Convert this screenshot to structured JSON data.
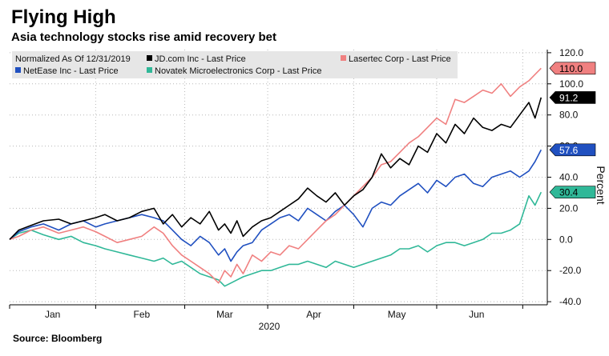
{
  "header": {
    "title": "Flying High",
    "subtitle": "Asia technology stocks rise amid recovery bet"
  },
  "footer": {
    "source": "Source: Bloomberg"
  },
  "chart_data": {
    "type": "line",
    "legend_note": "Normalized As Of 12/31/2019",
    "legend_placement": "top-left",
    "ylabel": "Percent",
    "xlabel": "2020",
    "ylim": [
      -42,
      122
    ],
    "yticks": [
      120,
      100,
      80,
      60,
      40,
      20,
      0,
      -20,
      -40
    ],
    "ytick_labels": [
      "120.0",
      "100.0",
      "80.0",
      "60.0",
      "40.0",
      "20.0",
      "0.0",
      "-20.0",
      "-40.0"
    ],
    "x_range": [
      0,
      175
    ],
    "x_months": [
      {
        "label": "Jan",
        "x": 14
      },
      {
        "label": "Feb",
        "x": 43
      },
      {
        "label": "Mar",
        "x": 70
      },
      {
        "label": "Apr",
        "x": 99
      },
      {
        "label": "May",
        "x": 126
      },
      {
        "label": "Jun",
        "x": 152
      }
    ],
    "x_month_boundaries": [
      0,
      28,
      57,
      84,
      112,
      139,
      167
    ],
    "grid": true,
    "series": [
      {
        "name": "JD.com Inc - Last Price",
        "color": "#000000",
        "last_value": 91.2,
        "last_label": "91.2",
        "tag_bg": "#000000",
        "tag_fg": "#ffffff",
        "x": [
          0,
          3,
          7,
          11,
          16,
          20,
          24,
          28,
          31,
          35,
          39,
          43,
          47,
          50,
          53,
          56,
          59,
          62,
          65,
          68,
          70,
          72,
          74,
          76,
          79,
          82,
          85,
          88,
          91,
          94,
          97,
          100,
          103,
          106,
          109,
          112,
          115,
          118,
          121,
          124,
          127,
          130,
          133,
          136,
          139,
          142,
          145,
          148,
          151,
          154,
          157,
          160,
          163,
          166,
          169,
          171,
          173
        ],
        "y": [
          0,
          6,
          9,
          12,
          13,
          10,
          12,
          14,
          16,
          12,
          14,
          18,
          20,
          10,
          16,
          8,
          14,
          10,
          18,
          6,
          10,
          4,
          12,
          2,
          8,
          12,
          14,
          18,
          22,
          26,
          33,
          28,
          24,
          30,
          22,
          28,
          32,
          40,
          55,
          46,
          52,
          48,
          60,
          56,
          68,
          62,
          74,
          68,
          78,
          72,
          70,
          74,
          72,
          80,
          88,
          78,
          91.2
        ]
      },
      {
        "name": "Lasertec Corp - Last Price",
        "color": "#f08080",
        "last_value": 110.0,
        "last_label": "110.0",
        "tag_bg": "#f08080",
        "tag_fg": "#000000",
        "x": [
          0,
          3,
          7,
          11,
          16,
          20,
          24,
          28,
          31,
          35,
          39,
          43,
          47,
          50,
          53,
          56,
          59,
          62,
          65,
          68,
          70,
          72,
          74,
          76,
          79,
          82,
          85,
          88,
          91,
          94,
          97,
          100,
          103,
          106,
          109,
          112,
          115,
          118,
          121,
          124,
          127,
          130,
          133,
          136,
          139,
          142,
          145,
          148,
          151,
          154,
          157,
          160,
          163,
          166,
          169,
          171,
          173
        ],
        "y": [
          0,
          2,
          6,
          8,
          4,
          6,
          8,
          5,
          2,
          -2,
          0,
          2,
          8,
          4,
          -4,
          -10,
          -14,
          -18,
          -22,
          -28,
          -20,
          -24,
          -16,
          -22,
          -10,
          -14,
          -8,
          -10,
          -4,
          -6,
          0,
          6,
          12,
          16,
          22,
          28,
          34,
          40,
          48,
          50,
          56,
          62,
          66,
          72,
          78,
          74,
          90,
          88,
          92,
          96,
          94,
          100,
          92,
          98,
          102,
          106,
          110.0
        ]
      },
      {
        "name": "NetEase Inc - Last Price",
        "color": "#2050c0",
        "last_value": 57.6,
        "last_label": "57.6",
        "tag_bg": "#2050c0",
        "tag_fg": "#ffffff",
        "x": [
          0,
          3,
          7,
          11,
          16,
          20,
          24,
          28,
          31,
          35,
          39,
          43,
          47,
          50,
          53,
          56,
          59,
          62,
          65,
          68,
          70,
          72,
          74,
          76,
          79,
          82,
          85,
          88,
          91,
          94,
          97,
          100,
          103,
          106,
          109,
          112,
          115,
          118,
          121,
          124,
          127,
          130,
          133,
          136,
          139,
          142,
          145,
          148,
          151,
          154,
          157,
          160,
          163,
          166,
          169,
          171,
          173
        ],
        "y": [
          0,
          5,
          8,
          10,
          6,
          10,
          12,
          8,
          10,
          12,
          14,
          16,
          14,
          12,
          6,
          0,
          -4,
          2,
          -2,
          -10,
          -6,
          -14,
          -8,
          -4,
          -2,
          6,
          10,
          14,
          16,
          12,
          20,
          16,
          12,
          18,
          22,
          16,
          8,
          20,
          24,
          22,
          28,
          32,
          36,
          30,
          38,
          34,
          40,
          42,
          36,
          34,
          40,
          42,
          44,
          40,
          44,
          50,
          57.6
        ]
      },
      {
        "name": "Novatek Microelectronics Corp - Last Price",
        "color": "#30b898",
        "last_value": 30.4,
        "last_label": "30.4",
        "tag_bg": "#30b898",
        "tag_fg": "#000000",
        "x": [
          0,
          3,
          7,
          11,
          16,
          20,
          24,
          28,
          31,
          35,
          39,
          43,
          47,
          50,
          53,
          56,
          59,
          62,
          65,
          68,
          70,
          72,
          74,
          76,
          79,
          82,
          85,
          88,
          91,
          94,
          97,
          100,
          103,
          106,
          109,
          112,
          115,
          118,
          121,
          124,
          127,
          130,
          133,
          136,
          139,
          142,
          145,
          148,
          151,
          154,
          157,
          160,
          163,
          166,
          169,
          171,
          173
        ],
        "y": [
          0,
          4,
          6,
          3,
          0,
          2,
          -2,
          -4,
          -6,
          -8,
          -10,
          -12,
          -14,
          -12,
          -16,
          -14,
          -18,
          -22,
          -24,
          -26,
          -30,
          -28,
          -26,
          -24,
          -22,
          -20,
          -20,
          -18,
          -16,
          -16,
          -14,
          -16,
          -18,
          -14,
          -16,
          -18,
          -16,
          -14,
          -12,
          -10,
          -6,
          -6,
          -4,
          -8,
          -4,
          -2,
          -2,
          -4,
          -2,
          0,
          4,
          4,
          6,
          10,
          28,
          22,
          30.4
        ]
      }
    ]
  }
}
